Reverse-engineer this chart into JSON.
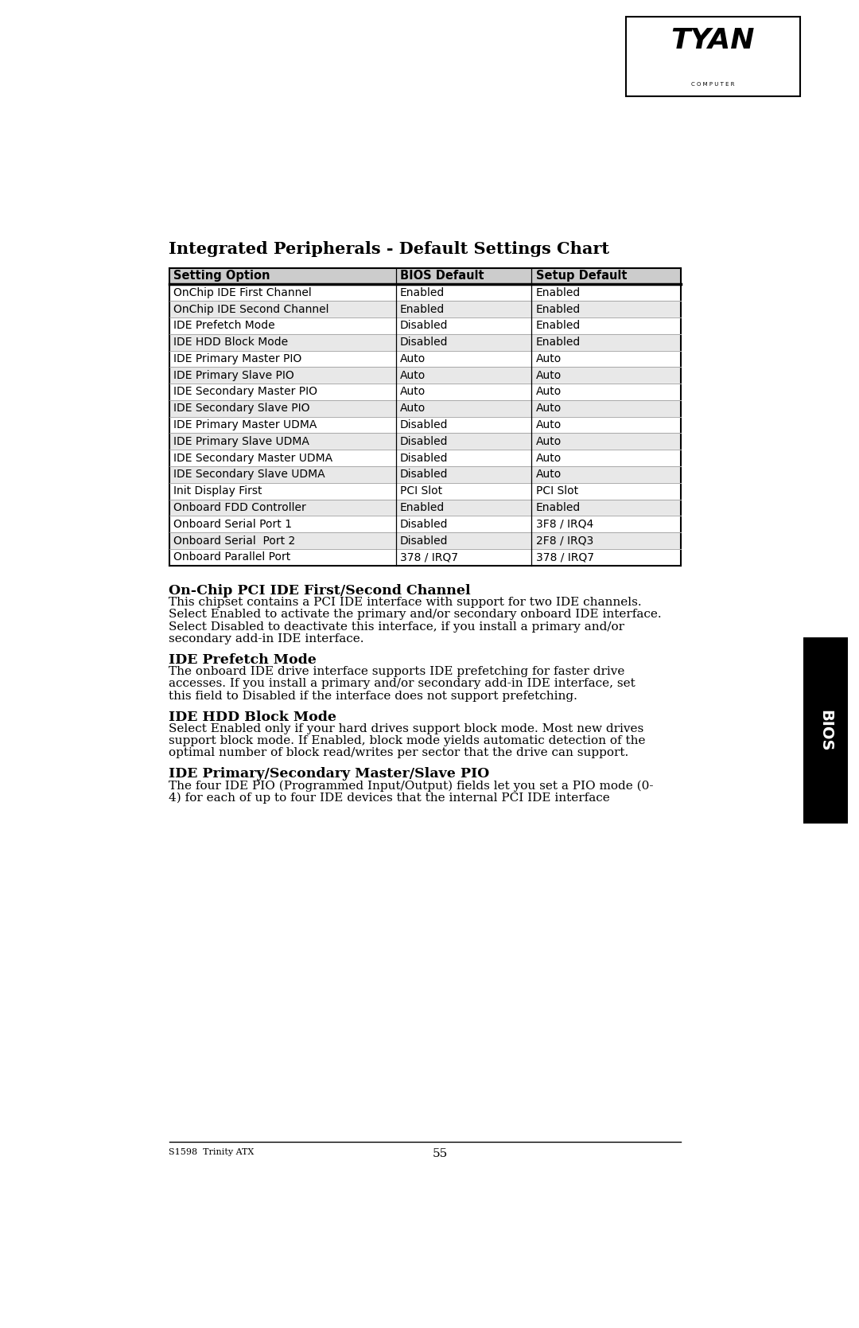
{
  "page_bg": "#ffffff",
  "title": "Integrated Peripherals - Default Settings Chart",
  "table_headers": [
    "Setting Option",
    "BIOS Default",
    "Setup Default"
  ],
  "table_rows": [
    [
      "OnChip IDE First Channel",
      "Enabled",
      "Enabled"
    ],
    [
      "OnChip IDE Second Channel",
      "Enabled",
      "Enabled"
    ],
    [
      "IDE Prefetch Mode",
      "Disabled",
      "Enabled"
    ],
    [
      "IDE HDD Block Mode",
      "Disabled",
      "Enabled"
    ],
    [
      "IDE Primary Master PIO",
      "Auto",
      "Auto"
    ],
    [
      "IDE Primary Slave PIO",
      "Auto",
      "Auto"
    ],
    [
      "IDE Secondary Master PIO",
      "Auto",
      "Auto"
    ],
    [
      "IDE Secondary Slave PIO",
      "Auto",
      "Auto"
    ],
    [
      "IDE Primary Master UDMA",
      "Disabled",
      "Auto"
    ],
    [
      "IDE Primary Slave UDMA",
      "Disabled",
      "Auto"
    ],
    [
      "IDE Secondary Master UDMA",
      "Disabled",
      "Auto"
    ],
    [
      "IDE Secondary Slave UDMA",
      "Disabled",
      "Auto"
    ],
    [
      "Init Display First",
      "PCI Slot",
      "PCI Slot"
    ],
    [
      "Onboard FDD Controller",
      "Enabled",
      "Enabled"
    ],
    [
      "Onboard Serial Port 1",
      "Disabled",
      "3F8 / IRQ4"
    ],
    [
      "Onboard Serial  Port 2",
      "Disabled",
      "2F8 / IRQ3"
    ],
    [
      "Onboard Parallel Port",
      "378 / IRQ7",
      "378 / IRQ7"
    ]
  ],
  "section1_title": "On-Chip PCI IDE First/Second Channel",
  "section1_body": "This chipset contains a PCI IDE interface with support for two IDE channels.\nSelect Enabled to activate the primary and/or secondary onboard IDE interface.\nSelect Disabled to deactivate this interface, if you install a primary and/or\nsecondary add-in IDE interface.",
  "section2_title": "IDE Prefetch Mode",
  "section2_body": "The onboard IDE drive interface supports IDE prefetching for faster drive\naccesses. If you install a primary and/or secondary add-in IDE interface, set\nthis field to Disabled if the interface does not support prefetching.",
  "section3_title": "IDE HDD Block Mode",
  "section3_body": "Select Enabled only if your hard drives support block mode. Most new drives\nsupport block mode. If Enabled, block mode yields automatic detection of the\noptimal number of block read/writes per sector that the drive can support.",
  "section4_title": "IDE Primary/Secondary Master/Slave PIO",
  "section4_body": "The four IDE PIO (Programmed Input/Output) fields let you set a PIO mode (0-\n4) for each of up to four IDE devices that the internal PCI IDE interface",
  "footer_left": "S1598  Trinity ATX",
  "footer_center": "55",
  "bios_tab_text": "BIOS",
  "header_bg": "#cccccc",
  "row_alt_bg": "#e8e8e8",
  "row_bg": "#ffffff",
  "border_color": "#000000"
}
